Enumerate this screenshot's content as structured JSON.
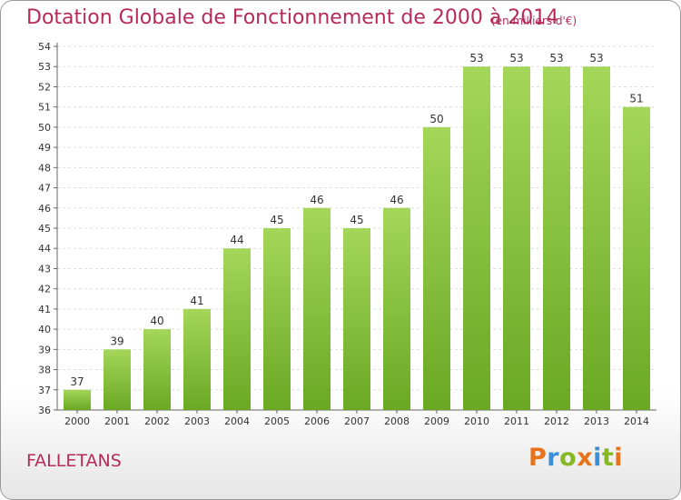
{
  "chart_data": {
    "type": "bar",
    "title": "Dotation Globale de Fonctionnement de 2000 à 2014",
    "unit": "(en milliers d'€)",
    "categories": [
      "2000",
      "2001",
      "2002",
      "2003",
      "2004",
      "2005",
      "2006",
      "2007",
      "2008",
      "2009",
      "2010",
      "2011",
      "2012",
      "2013",
      "2014"
    ],
    "values": [
      37,
      39,
      40,
      41,
      44,
      45,
      46,
      45,
      46,
      50,
      53,
      53,
      53,
      53,
      51
    ],
    "ylim": [
      36,
      54
    ],
    "yticks": [
      36,
      37,
      38,
      39,
      40,
      41,
      42,
      43,
      44,
      45,
      46,
      47,
      48,
      49,
      50,
      51,
      52,
      53,
      54
    ],
    "grid": true,
    "colors": {
      "bar_light": "#a4d65a",
      "bar_dark": "#6aa823",
      "text_accent": "#b52b5a"
    }
  },
  "place_name": "FALLETANS",
  "logo": {
    "letters": [
      "P",
      "r",
      "o",
      "x",
      "i",
      "t",
      "i"
    ],
    "colors": [
      "#e8731a",
      "#3a8fd6",
      "#86b825",
      "#e8731a",
      "#3a8fd6",
      "#86b825",
      "#e8731a"
    ]
  }
}
